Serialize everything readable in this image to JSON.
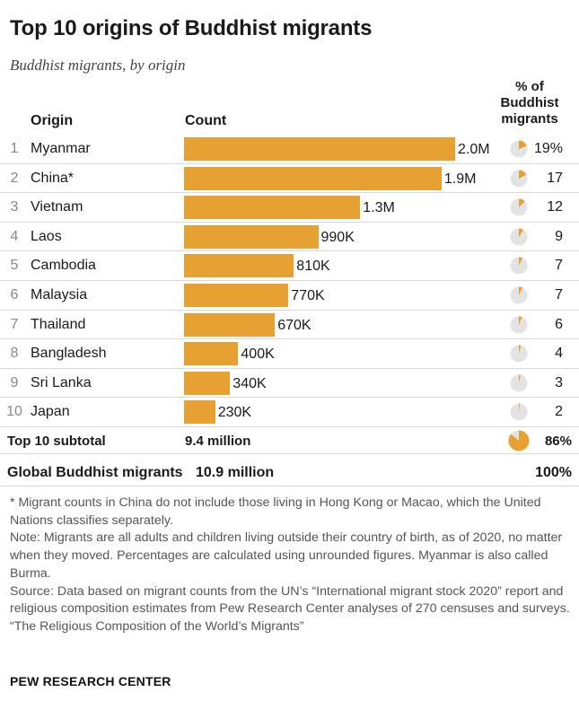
{
  "title": "Top 10 origins of Buddhist migrants",
  "subtitle": "Buddhist migrants, by origin",
  "headers": {
    "origin": "Origin",
    "count": "Count",
    "pct_line1": "% of",
    "pct_line2": "Buddhist",
    "pct_line3": "migrants"
  },
  "accent_color": "#e6a132",
  "pie_background_color": "#e3e3e3",
  "chart_data": {
    "type": "bar",
    "orientation": "horizontal",
    "title": "Top 10 origins of Buddhist migrants",
    "subtitle": "Buddhist migrants, by origin",
    "xlim": [
      0,
      2000000
    ],
    "rows": [
      {
        "rank": "1",
        "origin": "Myanmar",
        "count": 2000000,
        "count_label": "2.0M",
        "pct": 19,
        "pct_label": "19%"
      },
      {
        "rank": "2",
        "origin": "China*",
        "count": 1900000,
        "count_label": "1.9M",
        "pct": 17,
        "pct_label": "17"
      },
      {
        "rank": "3",
        "origin": "Vietnam",
        "count": 1300000,
        "count_label": "1.3M",
        "pct": 12,
        "pct_label": "12"
      },
      {
        "rank": "4",
        "origin": "Laos",
        "count": 990000,
        "count_label": "990K",
        "pct": 9,
        "pct_label": "9"
      },
      {
        "rank": "5",
        "origin": "Cambodia",
        "count": 810000,
        "count_label": "810K",
        "pct": 7,
        "pct_label": "7"
      },
      {
        "rank": "6",
        "origin": "Malaysia",
        "count": 770000,
        "count_label": "770K",
        "pct": 7,
        "pct_label": "7"
      },
      {
        "rank": "7",
        "origin": "Thailand",
        "count": 670000,
        "count_label": "670K",
        "pct": 6,
        "pct_label": "6"
      },
      {
        "rank": "8",
        "origin": "Bangladesh",
        "count": 400000,
        "count_label": "400K",
        "pct": 4,
        "pct_label": "4"
      },
      {
        "rank": "9",
        "origin": "Sri Lanka",
        "count": 340000,
        "count_label": "340K",
        "pct": 3,
        "pct_label": "3"
      },
      {
        "rank": "10",
        "origin": "Japan",
        "count": 230000,
        "count_label": "230K",
        "pct": 2,
        "pct_label": "2"
      }
    ],
    "subtotal": {
      "label": "Top 10 subtotal",
      "count_label": "9.4 million",
      "pct": 86,
      "pct_label": "86%"
    },
    "global": {
      "label": "Global Buddhist migrants",
      "count_label": "10.9 million",
      "pct_label": "100%"
    }
  },
  "notes": {
    "footnote": "* Migrant counts in China do not include those living in Hong Kong or Macao, which the United Nations classifies separately.",
    "note": "Note: Migrants are all adults and children living outside their country of birth, as of 2020, no matter when they moved. Percentages are calculated using unrounded figures. Myanmar is also called Burma.",
    "source": "Source: Data based on migrant counts from the UN’s “International migrant stock 2020” report and religious composition estimates from Pew Research Center analyses of 270 censuses and surveys.",
    "report": "“The Religious Composition of the World’s Migrants”"
  },
  "brand": "PEW RESEARCH CENTER"
}
